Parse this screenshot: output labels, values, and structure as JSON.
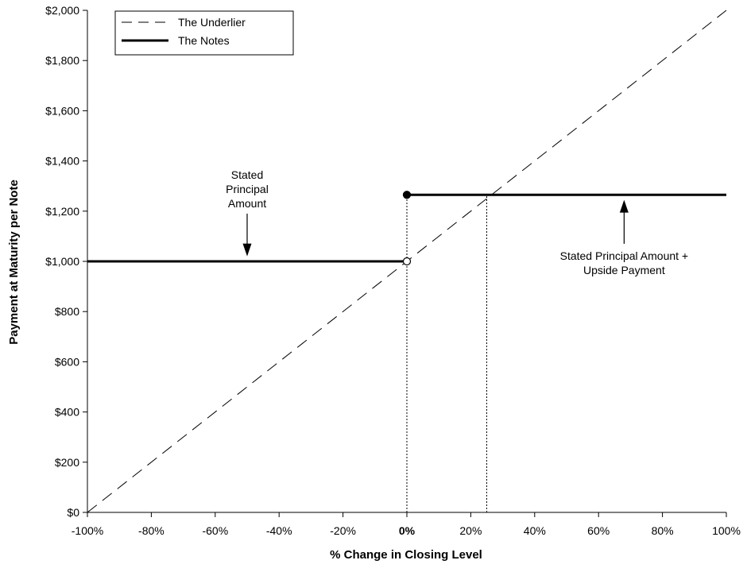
{
  "chart_data": {
    "type": "line",
    "xlabel": "% Change in Closing Level",
    "ylabel": "Payment at Maturity per Note",
    "xlim": [
      -100,
      100
    ],
    "ylim": [
      0,
      2000
    ],
    "x_ticks": [
      -100,
      -80,
      -60,
      -40,
      -20,
      0,
      20,
      40,
      60,
      80,
      100
    ],
    "x_tick_labels": [
      "-100%",
      "-80%",
      "-60%",
      "-40%",
      "-20%",
      "0%",
      "20%",
      "40%",
      "60%",
      "80%",
      "100%"
    ],
    "y_ticks": [
      0,
      200,
      400,
      600,
      800,
      1000,
      1200,
      1400,
      1600,
      1800,
      2000
    ],
    "y_tick_labels": [
      "$0",
      "$200",
      "$400",
      "$600",
      "$800",
      "$1,000",
      "$1,200",
      "$1,400",
      "$1,600",
      "$1,800",
      "$2,000"
    ],
    "legend": {
      "placement": "top-left",
      "entries": [
        {
          "label": "The Underlier",
          "style": "dashed"
        },
        {
          "label": "The Notes",
          "style": "solid-thick"
        }
      ]
    },
    "series": [
      {
        "name": "The Underlier",
        "style": "dashed",
        "points": [
          [
            -100,
            0
          ],
          [
            100,
            2000
          ]
        ]
      },
      {
        "name": "The Notes",
        "style": "solid-thick",
        "segments": [
          [
            [
              -100,
              1000
            ],
            [
              0,
              1000
            ]
          ],
          [
            [
              0,
              1265
            ],
            [
              100,
              1265
            ]
          ]
        ]
      }
    ],
    "markers": [
      {
        "x": 0,
        "y": 1000,
        "style": "open"
      },
      {
        "x": 0,
        "y": 1265,
        "style": "filled"
      }
    ],
    "reference_lines": [
      {
        "x": 0,
        "y_from": 0,
        "y_to": 1265,
        "style": "dotted"
      },
      {
        "x": 25,
        "y_from": 0,
        "y_to": 1265,
        "style": "dotted"
      }
    ],
    "annotations": [
      {
        "lines": [
          "Stated",
          "Principal",
          "Amount"
        ],
        "arrow_from": [
          -50,
          1190
        ],
        "arrow_to": [
          -50,
          1020
        ]
      },
      {
        "lines": [
          "Stated Principal Amount +",
          "Upside Payment"
        ],
        "arrow_from": [
          68,
          1070
        ],
        "arrow_to": [
          68,
          1245
        ]
      }
    ],
    "grid": false
  }
}
